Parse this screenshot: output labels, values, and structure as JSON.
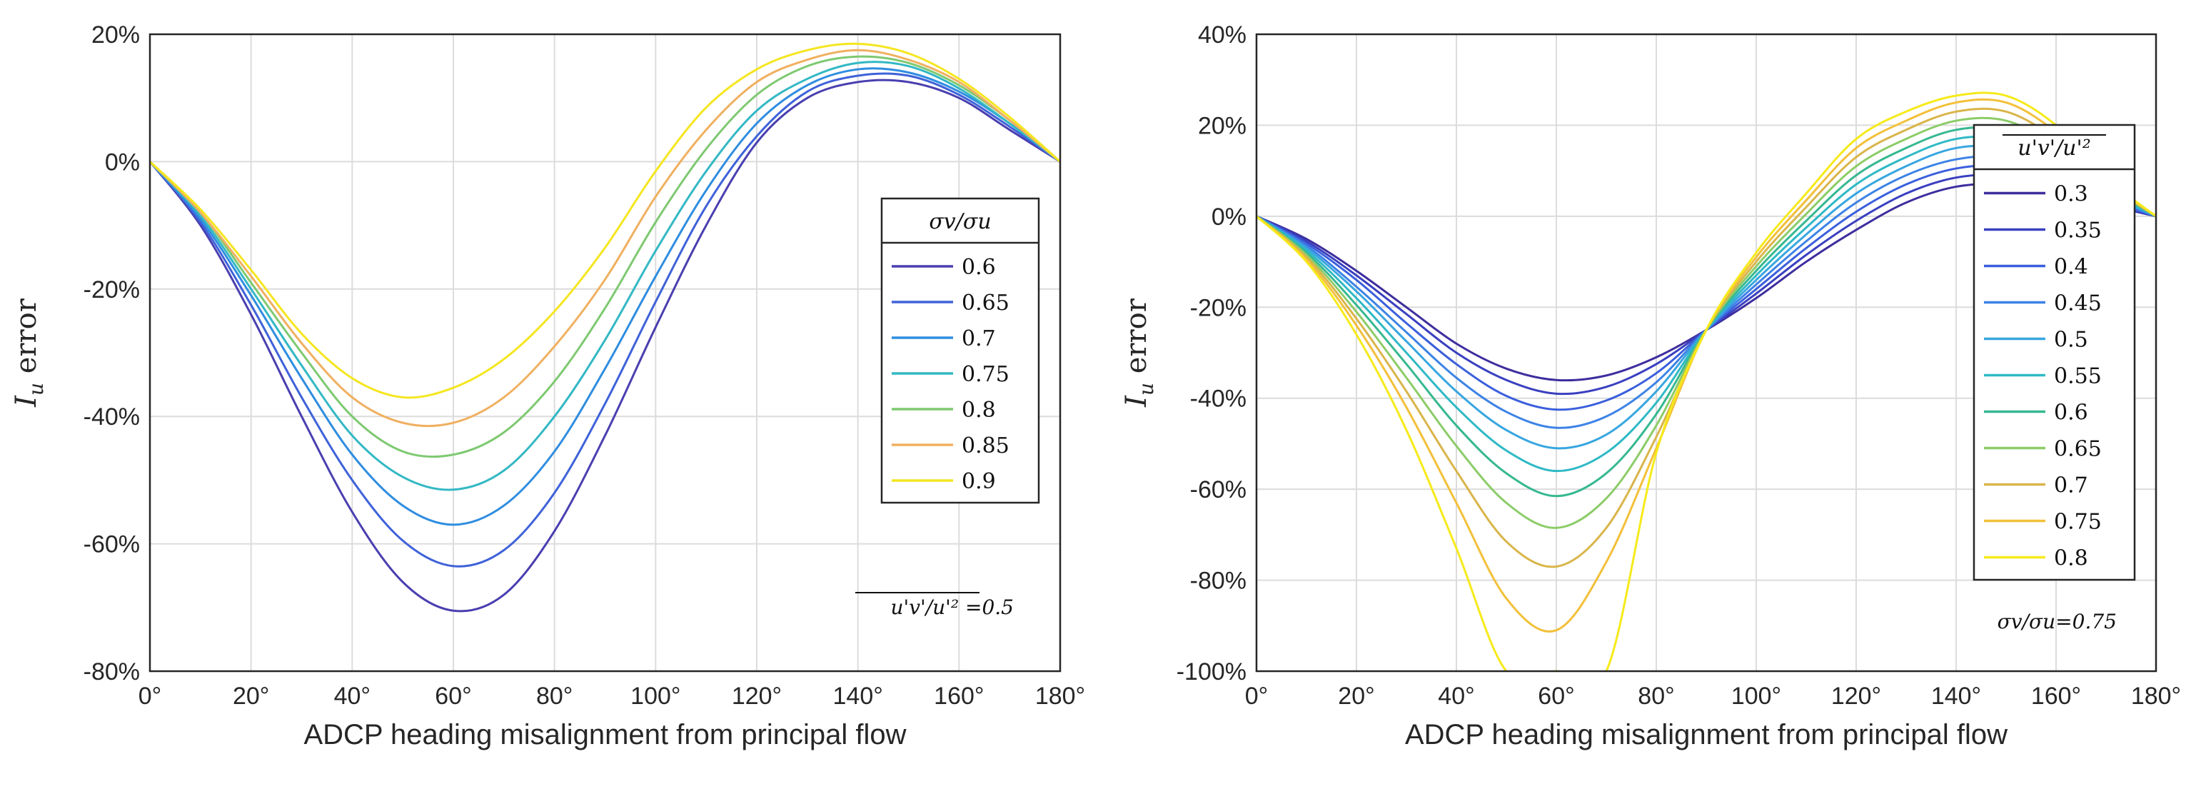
{
  "chart_data": [
    {
      "type": "line",
      "xlabel": "ADCP heading misalignment from principal flow",
      "ylabel": "I_u error",
      "xlim": [
        0,
        180
      ],
      "ylim": [
        -80,
        20
      ],
      "xticks": [
        "0°",
        "20°",
        "40°",
        "60°",
        "80°",
        "100°",
        "120°",
        "140°",
        "160°",
        "180°"
      ],
      "yticks": [
        "20%",
        "0%",
        "-20%",
        "-40%",
        "-60%",
        "-80%"
      ],
      "grid": true,
      "legend": {
        "title": "σv/σu",
        "placement": "right"
      },
      "annotation": "u'v'/u'² =0.5",
      "x": [
        0,
        10,
        20,
        30,
        40,
        50,
        60,
        70,
        80,
        90,
        100,
        110,
        120,
        130,
        140,
        150,
        160,
        170,
        180
      ],
      "series": [
        {
          "name": "0.6",
          "color": "#4a3fb0",
          "values": [
            0,
            -10,
            -24,
            -40,
            -55,
            -66,
            -70.5,
            -68,
            -58,
            -43,
            -26,
            -10,
            3,
            10,
            12.5,
            12.5,
            10,
            5,
            0
          ]
        },
        {
          "name": "0.65",
          "color": "#3f62d9",
          "values": [
            0,
            -9.5,
            -22.5,
            -37,
            -50,
            -59.5,
            -63.5,
            -61,
            -52,
            -38,
            -22,
            -7,
            4,
            11,
            13.5,
            13.5,
            10.5,
            5.5,
            0
          ]
        },
        {
          "name": "0.7",
          "color": "#2f8de0",
          "values": [
            0,
            -9,
            -21,
            -34,
            -46,
            -54,
            -57,
            -54,
            -45.5,
            -32.5,
            -18,
            -4.5,
            6,
            12,
            14.5,
            14,
            11,
            6,
            0
          ]
        },
        {
          "name": "0.75",
          "color": "#33b8c4",
          "values": [
            0,
            -8.5,
            -20,
            -32,
            -43,
            -49.5,
            -51.5,
            -48.5,
            -40,
            -28,
            -14,
            -1.5,
            8,
            13,
            15.5,
            15,
            11.5,
            6,
            0
          ]
        },
        {
          "name": "0.8",
          "color": "#7ec971",
          "values": [
            0,
            -8,
            -19,
            -30,
            -40,
            -45.5,
            -46,
            -42.5,
            -34.5,
            -23,
            -9.5,
            2,
            10.5,
            15,
            16.5,
            15.5,
            12,
            6.5,
            0
          ]
        },
        {
          "name": "0.85",
          "color": "#f0b060",
          "values": [
            0,
            -8,
            -18,
            -28.5,
            -37,
            -41,
            -41,
            -37,
            -29,
            -18.5,
            -5.5,
            5,
            12.5,
            16,
            17.5,
            16,
            12.5,
            6.5,
            0
          ]
        },
        {
          "name": "0.9",
          "color": "#f5e620",
          "values": [
            0,
            -7.5,
            -17,
            -27,
            -34,
            -37,
            -35.5,
            -31,
            -23.5,
            -13.5,
            -1.5,
            8.5,
            14.5,
            17.5,
            18.5,
            17,
            13,
            7,
            0
          ]
        }
      ]
    },
    {
      "type": "line",
      "xlabel": "ADCP heading misalignment from principal flow",
      "ylabel": "I_u error",
      "xlim": [
        0,
        180
      ],
      "ylim": [
        -100,
        40
      ],
      "xticks": [
        "0°",
        "20°",
        "40°",
        "60°",
        "80°",
        "100°",
        "120°",
        "140°",
        "160°",
        "180°"
      ],
      "yticks": [
        "40%",
        "20%",
        "0%",
        "-20%",
        "-40%",
        "-60%",
        "-80%",
        "-100%"
      ],
      "grid": true,
      "legend": {
        "title": "u'v'/u'²",
        "placement": "right"
      },
      "annotation": "σv/σu=0.75",
      "x": [
        0,
        10,
        20,
        30,
        40,
        50,
        60,
        70,
        80,
        90,
        100,
        110,
        120,
        130,
        140,
        150,
        160,
        170,
        180
      ],
      "series": [
        {
          "name": "0.3",
          "color": "#3d2e9e",
          "values": [
            0,
            -5,
            -12,
            -20,
            -28,
            -33.5,
            -36,
            -35,
            -31,
            -25,
            -18,
            -10,
            -3,
            3,
            6.5,
            7,
            5,
            2.5,
            0
          ]
        },
        {
          "name": "0.35",
          "color": "#3a40c0",
          "values": [
            0,
            -5.5,
            -13,
            -21.5,
            -30,
            -36,
            -39,
            -37.5,
            -32.5,
            -25,
            -17,
            -8.5,
            -1,
            5,
            8.5,
            9,
            6.5,
            3,
            0
          ]
        },
        {
          "name": "0.4",
          "color": "#3b5fdc",
          "values": [
            0,
            -6,
            -14,
            -23.5,
            -32.5,
            -39.5,
            -42.5,
            -40.5,
            -34.5,
            -25,
            -16,
            -7,
            1,
            7,
            10.5,
            11,
            8,
            3.5,
            0
          ]
        },
        {
          "name": "0.45",
          "color": "#3d83e6",
          "values": [
            0,
            -6.5,
            -15.5,
            -25.5,
            -35.5,
            -43,
            -46.5,
            -44,
            -36.5,
            -25,
            -15,
            -5.5,
            3,
            9,
            12.5,
            13,
            9.5,
            4.5,
            0
          ]
        },
        {
          "name": "0.5",
          "color": "#38a6e0",
          "values": [
            0,
            -7,
            -16.5,
            -27.5,
            -38.5,
            -47,
            -51,
            -48,
            -38.5,
            -25,
            -14,
            -4,
            5,
            11,
            15,
            15,
            11,
            5,
            0
          ]
        },
        {
          "name": "0.55",
          "color": "#2fb9c5",
          "values": [
            0,
            -7.5,
            -18,
            -30,
            -42,
            -51.5,
            -56,
            -52,
            -41,
            -25,
            -13,
            -2.5,
            7,
            13,
            17,
            17,
            12.5,
            6,
            0
          ]
        },
        {
          "name": "0.6",
          "color": "#36b890",
          "values": [
            0,
            -8,
            -19.5,
            -32.5,
            -46,
            -56.5,
            -61.5,
            -56.5,
            -43.5,
            -25,
            -12,
            -1,
            9,
            15,
            19,
            19,
            14,
            6.5,
            0
          ]
        },
        {
          "name": "0.65",
          "color": "#8ccc68",
          "values": [
            0,
            -8.5,
            -21,
            -35.5,
            -50.5,
            -63,
            -68.5,
            -62,
            -46,
            -25,
            -11,
            0.5,
            11,
            17,
            21,
            21,
            15.5,
            7,
            0
          ]
        },
        {
          "name": "0.7",
          "color": "#d9b54a",
          "values": [
            0,
            -9,
            -22.5,
            -38.5,
            -56,
            -71.5,
            -77,
            -68.5,
            -48.5,
            -25,
            -10,
            2,
            13,
            19,
            23,
            23,
            17,
            7.5,
            0
          ]
        },
        {
          "name": "0.75",
          "color": "#f3c03a",
          "values": [
            0,
            -9.5,
            -24,
            -42,
            -63,
            -84,
            -91,
            -76,
            -51,
            -25,
            -9,
            3.5,
            15,
            21,
            25,
            25,
            18.5,
            8,
            0
          ]
        },
        {
          "name": "0.8",
          "color": "#f6ea1a",
          "values": [
            0,
            -10,
            -26,
            -47,
            -73,
            -100,
            -100,
            -100,
            -52,
            -25,
            -8,
            5,
            17,
            23,
            26.5,
            26.5,
            20,
            8.5,
            0
          ]
        }
      ]
    }
  ]
}
